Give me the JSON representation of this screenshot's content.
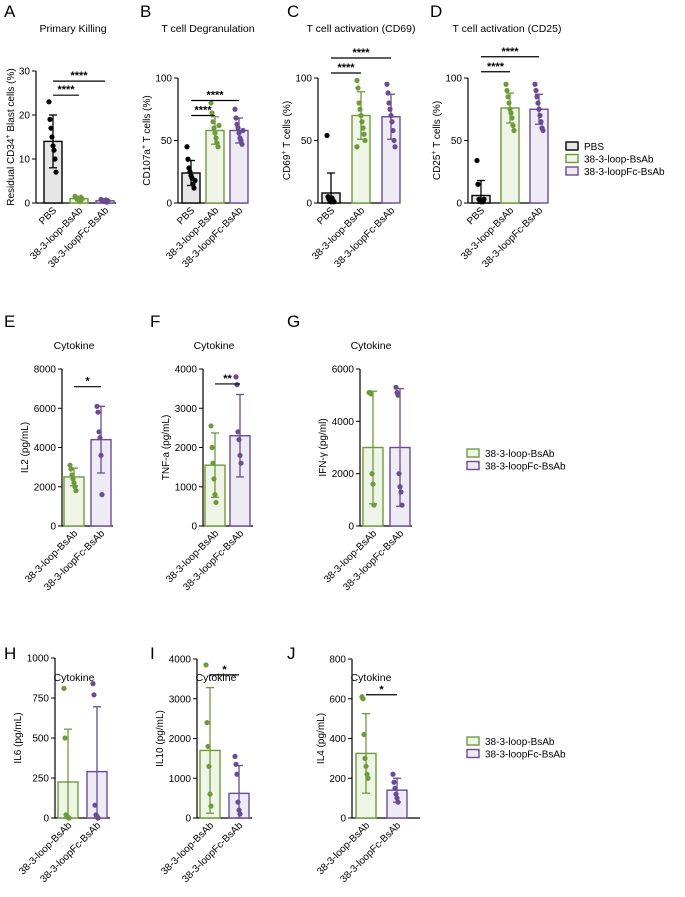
{
  "colors": {
    "pbs": "#000000",
    "loop": "#6f9a3b",
    "loopfc": "#6a4c93",
    "loop_fill": "#eef4e6",
    "loopfc_fill": "#eeebf5",
    "pbs_fill": "#e6e6e6"
  },
  "legends": [
    {
      "entries": [
        "PBS",
        "38-3-loop-BsAb",
        "38-3-loopFc-BsAb"
      ]
    },
    {
      "entries": [
        "38-3-loop-BsAb",
        "38-3-loopFc-BsAb"
      ]
    },
    {
      "entries": [
        "38-3-loop-BsAb",
        "38-3-loopFc-BsAb"
      ]
    }
  ],
  "chart_data": [
    {
      "type": "bar",
      "panel": "A",
      "title": "Primary Killing",
      "ylabel_parts": [
        "Residual CD34",
        "+",
        " Blast cells (%)"
      ],
      "ylim": [
        0,
        30
      ],
      "yticks": [
        "0",
        "10",
        "20",
        "30"
      ],
      "categories": [
        "PBS",
        "38-3-loop-BsAb",
        "38-3-loopFc-BsAb"
      ],
      "values": [
        14,
        1,
        0.5
      ],
      "errors": [
        6,
        0.5,
        0.4
      ],
      "points": [
        [
          23,
          19,
          17,
          15,
          13,
          12,
          10,
          7
        ],
        [
          1.5,
          1.2,
          1,
          0.8,
          0.5,
          0.3,
          1.3,
          0.9
        ],
        [
          0.8,
          0.6,
          0.5,
          0.4,
          0.3,
          0.7,
          0.2,
          0.5
        ]
      ],
      "sig": [
        {
          "from": 0,
          "to": 1,
          "y": 24.5,
          "label": "****"
        },
        {
          "from": 0,
          "to": 2,
          "y": 27.7,
          "label": "****"
        }
      ]
    },
    {
      "type": "bar",
      "panel": "B",
      "title": "T cell Degranulation",
      "ylabel_parts": [
        "CD107a",
        "+",
        " T cells (%)"
      ],
      "ylim": [
        0,
        100
      ],
      "yticks": [
        "0",
        "50",
        "100"
      ],
      "categories": [
        "PBS",
        "38-3-loop-BsAb",
        "38-3-loopFc-BsAb"
      ],
      "values": [
        24,
        58,
        58
      ],
      "errors": [
        10,
        11,
        10
      ],
      "points": [
        [
          45,
          35,
          28,
          25,
          22,
          20,
          15,
          12,
          18
        ],
        [
          80,
          72,
          65,
          60,
          56,
          52,
          48,
          45,
          62
        ],
        [
          75,
          68,
          63,
          60,
          56,
          52,
          50,
          47,
          58
        ]
      ],
      "sig": [
        {
          "from": 0,
          "to": 1,
          "y": 70,
          "label": "****"
        },
        {
          "from": 0,
          "to": 2,
          "y": 82,
          "label": "****"
        }
      ]
    },
    {
      "type": "bar",
      "panel": "C",
      "title": "T cell activation (CD69)",
      "ylabel_parts": [
        "CD69",
        "+",
        " T cells (%)"
      ],
      "ylim": [
        0,
        100
      ],
      "yticks": [
        "0",
        "50",
        "100"
      ],
      "categories": [
        "PBS",
        "38-3-loop-BsAb",
        "38-3-loopFc-BsAb"
      ],
      "values": [
        8,
        70,
        69
      ],
      "errors": [
        16,
        19,
        18
      ],
      "points": [
        [
          54,
          5,
          3,
          2,
          1,
          4,
          2,
          1
        ],
        [
          98,
          92,
          80,
          75,
          70,
          65,
          60,
          55,
          50,
          45
        ],
        [
          95,
          88,
          80,
          75,
          70,
          65,
          58,
          50,
          45
        ]
      ],
      "sig": [
        {
          "from": 0,
          "to": 1,
          "y": 104,
          "label": "****"
        },
        {
          "from": 0,
          "to": 2,
          "y": 116,
          "label": "****"
        }
      ]
    },
    {
      "type": "bar",
      "panel": "D",
      "title": "T cell activation (CD25)",
      "ylabel_parts": [
        "CD25",
        "+",
        " T cells (%)"
      ],
      "ylim": [
        0,
        100
      ],
      "yticks": [
        "0",
        "50",
        "100"
      ],
      "categories": [
        "PBS",
        "38-3-loop-BsAb",
        "38-3-loopFc-BsAb"
      ],
      "values": [
        6,
        76,
        75
      ],
      "errors": [
        12,
        12,
        12
      ],
      "points": [
        [
          34,
          15,
          3,
          2,
          1,
          2,
          1,
          3
        ],
        [
          95,
          90,
          85,
          80,
          75,
          72,
          68,
          62,
          58
        ],
        [
          95,
          90,
          85,
          80,
          75,
          70,
          65,
          60,
          58
        ]
      ],
      "sig": [
        {
          "from": 0,
          "to": 1,
          "y": 105,
          "label": "****"
        },
        {
          "from": 0,
          "to": 2,
          "y": 117,
          "label": "****"
        }
      ]
    },
    {
      "type": "bar",
      "panel": "E",
      "title": "Cytokine",
      "ylabel_parts": [
        "IL2 (pg/mL)"
      ],
      "ylim": [
        0,
        8000
      ],
      "yticks": [
        "0",
        "2000",
        "4000",
        "6000",
        "8000"
      ],
      "categories": [
        "38-3-loop-BsAb",
        "38-3-loopFc-BsAb"
      ],
      "values": [
        2500,
        4400
      ],
      "errors": [
        450,
        1700
      ],
      "points": [
        [
          3100,
          2900,
          2600,
          2400,
          2200,
          2000,
          1800
        ],
        [
          6100,
          5800,
          4800,
          4500,
          3600,
          1600
        ]
      ],
      "sig": [
        {
          "from": 0,
          "to": 1,
          "y": 7100,
          "label": "*"
        }
      ]
    },
    {
      "type": "bar",
      "panel": "F",
      "title": "Cytokine",
      "ylabel_parts": [
        "TNF-a (pg/mL)"
      ],
      "ylim": [
        0,
        4000
      ],
      "yticks": [
        "0",
        "1000",
        "2000",
        "3000",
        "4000"
      ],
      "categories": [
        "38-3-loop-BsAb",
        "38-3-loopFc-BsAb"
      ],
      "values": [
        1550,
        2300
      ],
      "errors": [
        820,
        1050
      ],
      "points": [
        [
          2550,
          2000,
          1600,
          1200,
          800,
          600
        ],
        [
          3800,
          3600,
          2400,
          2200,
          1800,
          1600
        ]
      ],
      "sig": [
        {
          "from": 0,
          "to": 1,
          "y": 3620,
          "label": "**"
        }
      ]
    },
    {
      "type": "bar",
      "panel": "G",
      "title": "Cytokine",
      "ylabel_parts": [
        "IFN-γ (pg/ml)"
      ],
      "ylim": [
        0,
        6000
      ],
      "yticks": [
        "0",
        "2000",
        "4000",
        "6000"
      ],
      "categories": [
        "38-3-loop-BsAb",
        "38-3-loopFc-BsAb"
      ],
      "values": [
        3000,
        3000
      ],
      "errors": [
        2150,
        2250
      ],
      "points": [
        [
          5100,
          5100,
          5050,
          2000,
          1600,
          800
        ],
        [
          5300,
          5100,
          5000,
          2000,
          1500,
          1300,
          800
        ]
      ],
      "sig": []
    },
    {
      "type": "bar",
      "panel": "H",
      "title": "Cytokine",
      "ylabel_parts": [
        "IL6 (pg/mL)"
      ],
      "ylim": [
        0,
        1000
      ],
      "yticks": [
        "0",
        "250",
        "500",
        "750",
        "1000"
      ],
      "categories": [
        "38-3-loop-BsAb",
        "38-3-loopFc-BsAb"
      ],
      "values": [
        225,
        290
      ],
      "errors": [
        330,
        405
      ],
      "points": [
        [
          810,
          500,
          20,
          10,
          5,
          0
        ],
        [
          840,
          770,
          80,
          20,
          10,
          0
        ]
      ],
      "sig": []
    },
    {
      "type": "bar",
      "panel": "I",
      "title": "Cytokine",
      "ylabel_parts": [
        "IL10 (pg/mL)"
      ],
      "ylim": [
        0,
        4000
      ],
      "yticks": [
        "0",
        "1000",
        "2000",
        "3000",
        "4000"
      ],
      "categories": [
        "38-3-loop-BsAb",
        "38-3-loopFc-BsAb"
      ],
      "values": [
        1700,
        620
      ],
      "errors": [
        1580,
        700
      ],
      "points": [
        [
          3850,
          2400,
          1800,
          1300,
          600,
          300
        ],
        [
          1550,
          1350,
          1100,
          400,
          200,
          100
        ]
      ],
      "sig": [
        {
          "from": 0,
          "to": 1,
          "y": 3600,
          "label": "*"
        }
      ]
    },
    {
      "type": "bar",
      "panel": "J",
      "title": "Cytokine",
      "ylabel_parts": [
        "IL4 (pg/mL)"
      ],
      "ylim": [
        0,
        800
      ],
      "yticks": [
        "0",
        "200",
        "400",
        "600",
        "800"
      ],
      "categories": [
        "38-3-loop-BsAb",
        "38-3-loopFc-BsAb"
      ],
      "values": [
        325,
        140
      ],
      "errors": [
        200,
        60
      ],
      "points": [
        [
          610,
          600,
          420,
          300,
          260,
          220,
          200
        ],
        [
          220,
          180,
          150,
          120,
          100,
          80
        ]
      ],
      "sig": [
        {
          "from": 0,
          "to": 1,
          "y": 620,
          "label": "*"
        }
      ]
    }
  ]
}
